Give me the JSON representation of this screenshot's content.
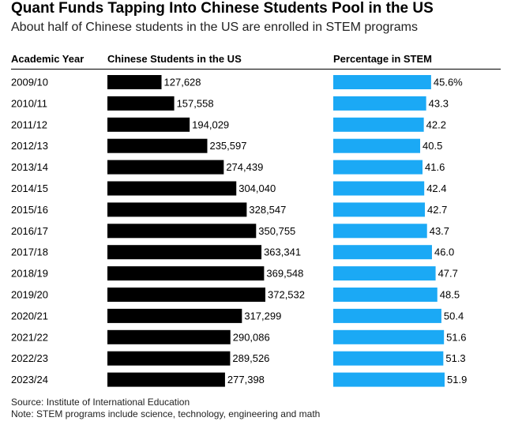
{
  "title": "Quant Funds Tapping Into Chinese Students Pool in the US",
  "subtitle": "About half of Chinese students in the US are enrolled in STEM programs",
  "columns": {
    "year": "Academic Year",
    "students": "Chinese Students in the US",
    "stem": "Percentage in STEM"
  },
  "source": "Source: Institute of International Education",
  "note": "Note: STEM programs include science, technology, engineering and math",
  "colors": {
    "students_bar": "#000000",
    "stem_bar": "#1ba9f5",
    "rule": "#000000"
  },
  "chart_data": {
    "type": "bar",
    "categories": [
      "2009/10",
      "2010/11",
      "2011/12",
      "2012/13",
      "2013/14",
      "2014/15",
      "2015/16",
      "2016/17",
      "2017/18",
      "2018/19",
      "2019/20",
      "2020/21",
      "2021/22",
      "2022/23",
      "2023/24"
    ],
    "series": [
      {
        "name": "Chinese Students in the US",
        "values": [
          127628,
          157558,
          194029,
          235597,
          274439,
          304040,
          328547,
          350755,
          363341,
          369548,
          372532,
          317299,
          290086,
          289526,
          277398
        ],
        "labels": [
          "127,628",
          "157,558",
          "194,029",
          "235,597",
          "274,439",
          "304,040",
          "328,547",
          "350,755",
          "363,341",
          "369,548",
          "372,532",
          "317,299",
          "290,086",
          "289,526",
          "277,398"
        ]
      },
      {
        "name": "Percentage in STEM",
        "values": [
          45.6,
          43.3,
          42.2,
          40.5,
          41.6,
          42.4,
          42.7,
          43.7,
          46.0,
          47.7,
          48.5,
          50.4,
          51.6,
          51.3,
          51.9
        ],
        "labels": [
          "45.6%",
          "43.3",
          "42.2",
          "40.5",
          "41.6",
          "42.4",
          "42.7",
          "43.7",
          "46.0",
          "47.7",
          "48.5",
          "50.4",
          "51.6",
          "51.3",
          "51.9"
        ]
      }
    ]
  }
}
